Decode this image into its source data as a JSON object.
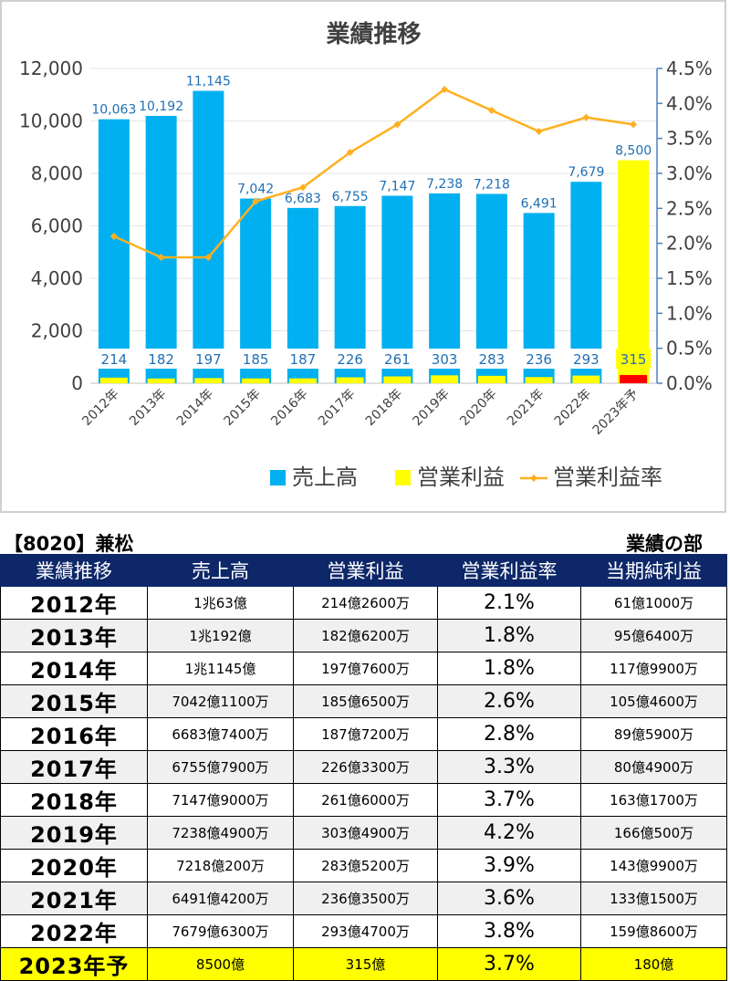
{
  "chart_data": {
    "type": "bar",
    "title": "業績推移",
    "categories": [
      "2012年",
      "2013年",
      "2014年",
      "2015年",
      "2016年",
      "2017年",
      "2018年",
      "2019年",
      "2020年",
      "2021年",
      "2022年",
      "2023年予"
    ],
    "series": [
      {
        "name": "売上高",
        "type": "bar",
        "axis": "left",
        "values": [
          10063,
          10192,
          11145,
          7042,
          6683,
          6755,
          7147,
          7238,
          7218,
          6491,
          7679,
          8500
        ],
        "labels": [
          "10,063",
          "10,192",
          "11,145",
          "7,042",
          "6,683",
          "6,755",
          "7,147",
          "7,238",
          "7,218",
          "6,491",
          "7,679",
          "8,500"
        ]
      },
      {
        "name": "営業利益",
        "type": "bar",
        "axis": "left",
        "values": [
          214,
          182,
          197,
          185,
          187,
          226,
          261,
          303,
          283,
          236,
          293,
          315
        ],
        "labels": [
          "214",
          "182",
          "197",
          "185",
          "187",
          "226",
          "261",
          "303",
          "283",
          "236",
          "293",
          "315"
        ]
      },
      {
        "name": "営業利益率",
        "type": "line",
        "axis": "right",
        "values": [
          2.1,
          1.8,
          1.8,
          2.6,
          2.8,
          3.3,
          3.7,
          4.2,
          3.9,
          3.6,
          3.8,
          3.7
        ]
      }
    ],
    "yleft": {
      "min": 0,
      "max": 12000,
      "ticks": [
        0,
        2000,
        4000,
        6000,
        8000,
        10000,
        12000
      ],
      "tick_labels": [
        "0",
        "2,000",
        "4,000",
        "6,000",
        "8,000",
        "10,000",
        "12,000"
      ]
    },
    "yright": {
      "min": 0,
      "max": 4.5,
      "ticks": [
        0,
        0.5,
        1,
        1.5,
        2,
        2.5,
        3,
        3.5,
        4,
        4.5
      ],
      "tick_labels": [
        "0.0%",
        "0.5%",
        "1.0%",
        "1.5%",
        "2.0%",
        "2.5%",
        "3.0%",
        "3.5%",
        "4.0%",
        "4.5%"
      ]
    },
    "legend": {
      "position": "bottom",
      "items": [
        "売上高",
        "営業利益",
        "営業利益率"
      ]
    },
    "colors": {
      "sales": "#00b0f0",
      "sales_forecast": "#ffff00",
      "op": "#ffff00",
      "op_forecast": "#ff0000",
      "margin": "#ffb020",
      "axis_right": "#4f81bd",
      "label": "#1f6fb5"
    }
  },
  "table": {
    "company": "【8020】兼松",
    "section": "業績の部",
    "headers": [
      "業績推移",
      "売上高",
      "営業利益",
      "営業利益率",
      "当期純利益"
    ],
    "rows": [
      {
        "year": "2012年",
        "sales": "1兆63億",
        "op": "214億2600万",
        "margin": "2.1%",
        "net": "61億1000万"
      },
      {
        "year": "2013年",
        "sales": "1兆192億",
        "op": "182億6200万",
        "margin": "1.8%",
        "net": "95億6400万"
      },
      {
        "year": "2014年",
        "sales": "1兆1145億",
        "op": "197億7600万",
        "margin": "1.8%",
        "net": "117億9900万"
      },
      {
        "year": "2015年",
        "sales": "7042億1100万",
        "op": "185億6500万",
        "margin": "2.6%",
        "net": "105億4600万"
      },
      {
        "year": "2016年",
        "sales": "6683億7400万",
        "op": "187億7200万",
        "margin": "2.8%",
        "net": "89億5900万"
      },
      {
        "year": "2017年",
        "sales": "6755億7900万",
        "op": "226億3300万",
        "margin": "3.3%",
        "net": "80億4900万"
      },
      {
        "year": "2018年",
        "sales": "7147億9000万",
        "op": "261億6000万",
        "margin": "3.7%",
        "net": "163億1700万"
      },
      {
        "year": "2019年",
        "sales": "7238億4900万",
        "op": "303億4900万",
        "margin": "4.2%",
        "net": "166億500万"
      },
      {
        "year": "2020年",
        "sales": "7218億200万",
        "op": "283億5200万",
        "margin": "3.9%",
        "net": "143億9900万"
      },
      {
        "year": "2021年",
        "sales": "6491億4200万",
        "op": "236億3500万",
        "margin": "3.6%",
        "net": "133億1500万"
      },
      {
        "year": "2022年",
        "sales": "7679億6300万",
        "op": "293億4700万",
        "margin": "3.8%",
        "net": "159億8600万"
      },
      {
        "year": "2023年予",
        "sales": "8500億",
        "op": "315億",
        "margin": "3.7%",
        "net": "180億"
      }
    ]
  }
}
